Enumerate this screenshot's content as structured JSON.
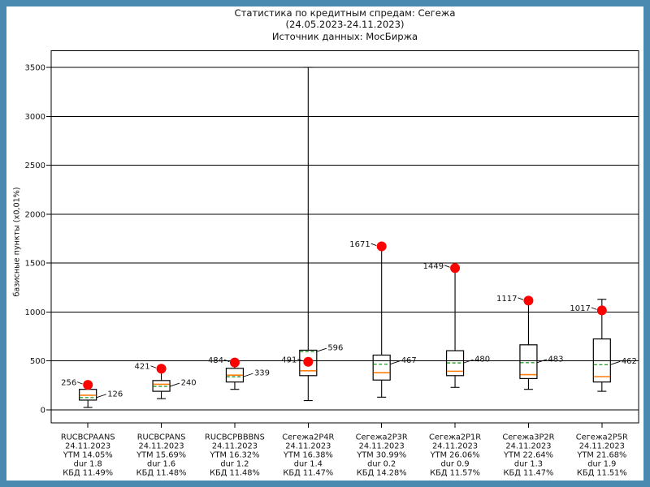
{
  "window": {
    "border_color": "#4a8ab1",
    "background": "#ffffff"
  },
  "chart_data": {
    "type": "boxplot",
    "title_lines": [
      "Статистика по кредитным спредам: Сегежа",
      "(24.05.2023-24.11.2023)",
      "Источник данных: МосБиржа"
    ],
    "ylabel": "базисные пункты (x0,01%)",
    "ylim": [
      0,
      3500
    ],
    "yticks": [
      0,
      500,
      1000,
      1500,
      2000,
      2500,
      3000,
      3500
    ],
    "grid": true,
    "legend_position": "none",
    "colors": {
      "frame": "#000000",
      "grid": "#000000",
      "box_edge": "#000000",
      "median": "#ff7f0e",
      "mean": "#2ca02c",
      "current_dot": "#ff0000",
      "text": "#111111"
    },
    "series": [
      {
        "label_lines": [
          "RUCBCPAANS",
          "24.11.2023",
          "YTM 14.05%",
          "dur 1.8",
          "КБД 11.49%"
        ],
        "whisker_low": 25,
        "q1": 100,
        "median": 150,
        "mean": 126,
        "q3": 210,
        "whisker_high": 256,
        "current": 256,
        "current_label": "256",
        "mean_label": "126"
      },
      {
        "label_lines": [
          "RUCBCPANS",
          "24.11.2023",
          "YTM 15.69%",
          "dur 1.6",
          "КБД 11.48%"
        ],
        "whisker_low": 115,
        "q1": 190,
        "median": 262,
        "mean": 240,
        "q3": 300,
        "whisker_high": 421,
        "current": 421,
        "current_label": "421",
        "mean_label": "240"
      },
      {
        "label_lines": [
          "RUCBCPBBBNS",
          "24.11.2023",
          "YTM 16.32%",
          "dur 1.2",
          "КБД 11.48%"
        ],
        "whisker_low": 210,
        "q1": 285,
        "median": 355,
        "mean": 339,
        "q3": 425,
        "whisker_high": 484,
        "current": 484,
        "current_label": "484",
        "mean_label": "339"
      },
      {
        "label_lines": [
          "Сегежа2P4R",
          "24.11.2023",
          "YTM 16.38%",
          "dur 1.4",
          "КБД 11.47%"
        ],
        "whisker_low": 95,
        "q1": 350,
        "median": 400,
        "mean": 596,
        "q3": 610,
        "whisker_high": 3500,
        "current": 491,
        "current_label": "491",
        "mean_label": "596"
      },
      {
        "label_lines": [
          "Сегежа2P3R",
          "24.11.2023",
          "YTM 30.99%",
          "dur 0.2",
          "КБД 14.28%"
        ],
        "whisker_low": 130,
        "q1": 305,
        "median": 380,
        "mean": 467,
        "q3": 560,
        "whisker_high": 1671,
        "current": 1671,
        "current_label": "1671",
        "mean_label": "467"
      },
      {
        "label_lines": [
          "Сегежа2P1R",
          "24.11.2023",
          "YTM 26.06%",
          "dur 0.9",
          "КБД 11.57%"
        ],
        "whisker_low": 230,
        "q1": 350,
        "median": 395,
        "mean": 480,
        "q3": 605,
        "whisker_high": 1449,
        "current": 1449,
        "current_label": "1449",
        "mean_label": "480"
      },
      {
        "label_lines": [
          "Сегежа3P2R",
          "24.11.2023",
          "YTM 22.64%",
          "dur 1.3",
          "КБД 11.47%"
        ],
        "whisker_low": 210,
        "q1": 320,
        "median": 360,
        "mean": 483,
        "q3": 665,
        "whisker_high": 1117,
        "current": 1117,
        "current_label": "1117",
        "mean_label": "483"
      },
      {
        "label_lines": [
          "Сегежа2P5R",
          "24.11.2023",
          "YTM 21.68%",
          "dur 1.9",
          "КБД 11.51%"
        ],
        "whisker_low": 190,
        "q1": 285,
        "median": 340,
        "mean": 462,
        "q3": 725,
        "whisker_high": 1130,
        "current": 1017,
        "current_label": "1017",
        "mean_label": "462"
      }
    ]
  }
}
